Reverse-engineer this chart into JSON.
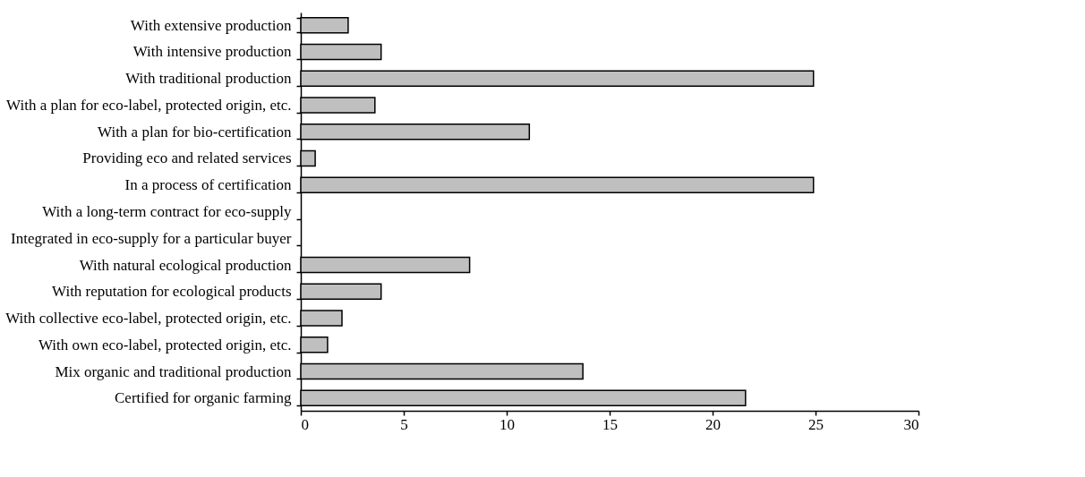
{
  "chart_data": {
    "type": "bar",
    "orientation": "horizontal",
    "categories": [
      "With extensive production",
      "With intensive production",
      "With traditional production",
      "With a plan for eco-label, protected origin, etc.",
      "With a plan for bio-certification",
      "Providing eco and related services",
      "In a process of certification",
      "With a long-term contract for eco-supply",
      "Integrated in eco-supply for a particular buyer",
      "With natural ecological production",
      "With reputation for ecological products",
      "With collective eco-label, protected origin, etc.",
      "With own eco-label, protected origin, etc.",
      "Mix organic and traditional production",
      "Certified for organic farming"
    ],
    "values": [
      2.3,
      3.9,
      24.9,
      3.6,
      11.1,
      0.7,
      24.9,
      null,
      null,
      8.2,
      3.9,
      2.0,
      1.3,
      13.7,
      21.6
    ],
    "color": "#bfbfbf",
    "xlim": [
      0,
      30
    ],
    "xticks": [
      0,
      5,
      10,
      15,
      20,
      25,
      30
    ],
    "grid": false
  }
}
